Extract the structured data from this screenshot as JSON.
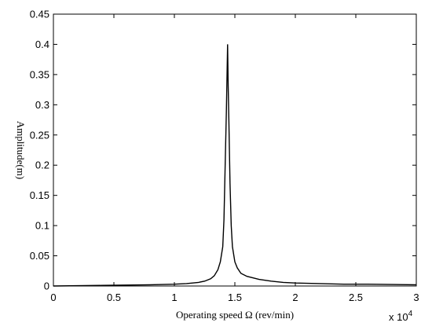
{
  "chart_data": {
    "type": "line",
    "title": "",
    "xlabel": "Operating speed Ω (rev/min)",
    "ylabel": "Amplitude(m)",
    "x_multiplier_label": "x 10",
    "x_multiplier_exponent": "4",
    "xlim": [
      0,
      3
    ],
    "ylim": [
      0,
      0.45
    ],
    "xticks": [
      "0",
      "0.5",
      "1",
      "1.5",
      "2",
      "2.5",
      "3"
    ],
    "yticks": [
      "0",
      "0.05",
      "0.1",
      "0.15",
      "0.2",
      "0.25",
      "0.3",
      "0.35",
      "0.4",
      "0.45"
    ],
    "grid": false,
    "legend": "none",
    "series": [
      {
        "color": "#000000",
        "x": [
          0,
          0.2,
          0.4,
          0.6,
          0.8,
          0.9,
          1.0,
          1.1,
          1.2,
          1.25,
          1.3,
          1.33,
          1.36,
          1.38,
          1.4,
          1.41,
          1.42,
          1.43,
          1.44,
          1.445,
          1.45,
          1.46,
          1.47,
          1.48,
          1.5,
          1.52,
          1.55,
          1.6,
          1.7,
          1.8,
          1.9,
          2.0,
          2.2,
          2.4,
          2.6,
          2.8,
          3.0
        ],
        "y": [
          0,
          0.0005,
          0.001,
          0.0015,
          0.002,
          0.0025,
          0.003,
          0.004,
          0.006,
          0.008,
          0.012,
          0.017,
          0.027,
          0.04,
          0.065,
          0.11,
          0.2,
          0.29,
          0.4,
          0.33,
          0.28,
          0.17,
          0.1,
          0.065,
          0.04,
          0.03,
          0.021,
          0.016,
          0.011,
          0.008,
          0.006,
          0.005,
          0.004,
          0.003,
          0.003,
          0.0025,
          0.002
        ]
      }
    ]
  }
}
